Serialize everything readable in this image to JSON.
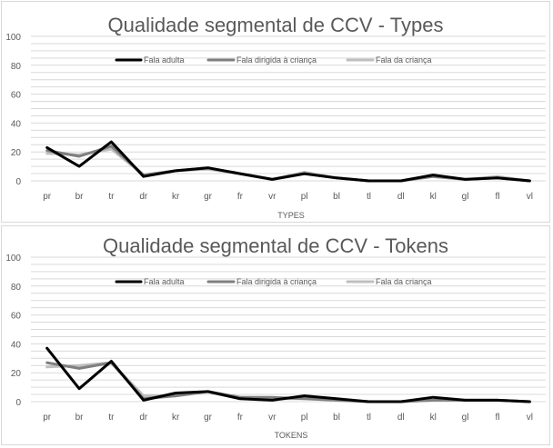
{
  "chart_data": [
    {
      "type": "line",
      "title": "Qualidade segmental de CCV - Types",
      "xlabel": "TYPES",
      "ylabel": "",
      "ylim": [
        0,
        100
      ],
      "yticks": [
        0,
        20,
        40,
        60,
        80,
        100
      ],
      "grid": true,
      "legend": "top-center",
      "categories": [
        "pr",
        "br",
        "tr",
        "dr",
        "kr",
        "gr",
        "fr",
        "vr",
        "pl",
        "bl",
        "tl",
        "dl",
        "kl",
        "gl",
        "fl",
        "vl"
      ],
      "series": [
        {
          "name": "Fala adulta",
          "color": "#000000",
          "values": [
            23,
            10,
            27,
            3,
            7,
            9,
            5,
            1,
            5,
            2,
            0,
            0,
            4,
            1,
            2,
            0
          ]
        },
        {
          "name": "Fala dirigida à criança",
          "color": "#7f7f7f",
          "values": [
            21,
            17,
            24,
            4,
            7,
            9,
            5,
            1,
            5,
            2,
            0,
            0,
            3,
            1,
            2,
            0
          ]
        },
        {
          "name": "Fala da criança",
          "color": "#bfbfbf",
          "values": [
            19,
            18,
            22,
            4,
            7,
            8,
            5,
            1,
            6,
            2,
            0,
            0,
            3,
            1,
            3,
            0
          ]
        }
      ]
    },
    {
      "type": "line",
      "title": "Qualidade segmental de CCV - Tokens",
      "xlabel": "TOKENS",
      "ylabel": "",
      "ylim": [
        0,
        100
      ],
      "yticks": [
        0,
        20,
        40,
        60,
        80,
        100
      ],
      "grid": true,
      "legend": "top-center",
      "categories": [
        "pr",
        "br",
        "tr",
        "dr",
        "kr",
        "gr",
        "fr",
        "vr",
        "pl",
        "bl",
        "tl",
        "dl",
        "kl",
        "gl",
        "fl",
        "vl"
      ],
      "series": [
        {
          "name": "Fala adulta",
          "color": "#000000",
          "values": [
            37,
            9,
            28,
            1,
            6,
            7,
            2,
            1,
            4,
            2,
            0,
            0,
            3,
            1,
            1,
            0
          ]
        },
        {
          "name": "Fala dirigida à criança",
          "color": "#7f7f7f",
          "values": [
            27,
            23,
            27,
            2,
            4,
            7,
            3,
            3,
            2,
            1,
            0,
            0,
            1,
            1,
            1,
            0
          ]
        },
        {
          "name": "Fala da criança",
          "color": "#bfbfbf",
          "values": [
            24,
            25,
            27,
            4,
            4,
            7,
            3,
            2,
            2,
            1,
            0,
            0,
            1,
            1,
            1,
            0
          ]
        }
      ]
    }
  ]
}
